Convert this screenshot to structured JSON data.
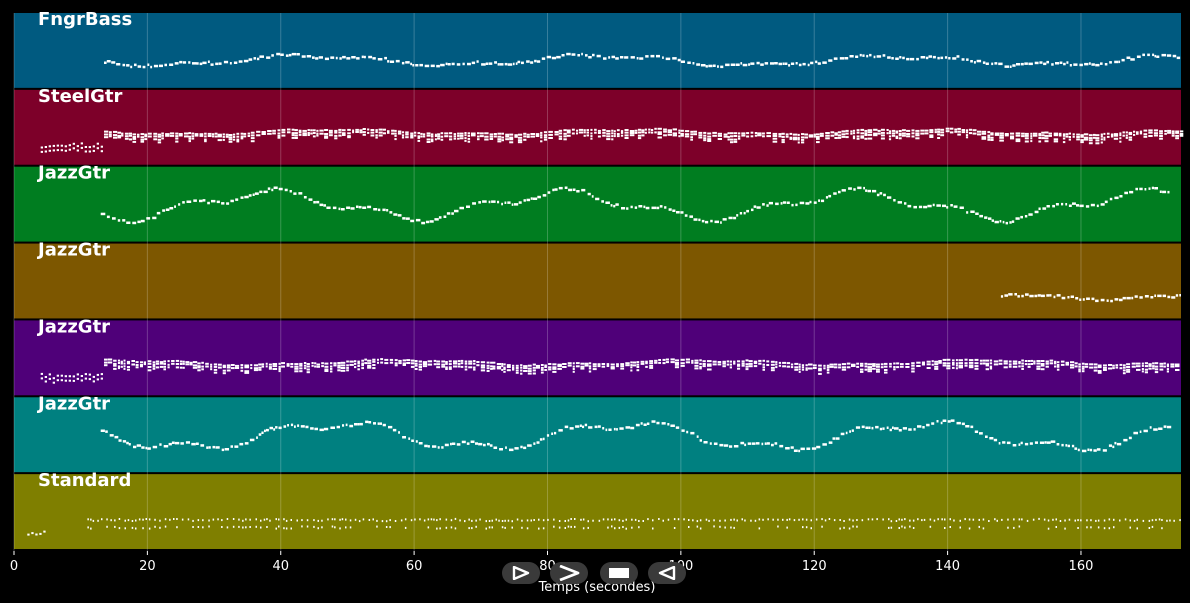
{
  "colors": {
    "background": "#000000",
    "note": "#ffffff",
    "grid": "#ffffff",
    "tick_text": "#ffffff"
  },
  "chart_data": {
    "type": "piano-roll",
    "xlabel": "Temps (secondes)",
    "xlim": [
      0,
      175
    ],
    "xticks": [
      0,
      20,
      40,
      60,
      80,
      100,
      120,
      140,
      160
    ],
    "grid": true,
    "tracks": [
      {
        "name": "FngrBass",
        "color": "#005a80",
        "start": 13.5,
        "end": 175,
        "pattern": "melody",
        "base": 0.62,
        "amp": 0.06,
        "seed": 11
      },
      {
        "name": "SteelGtr",
        "color": "#7d0029",
        "start": 13.5,
        "end": 175,
        "pattern": "chords",
        "base": 0.55,
        "amp": 0.05,
        "seed": 23,
        "intro": [
          4,
          13
        ]
      },
      {
        "name": "JazzGtr",
        "color": "#007d20",
        "start": 13,
        "end": 173,
        "pattern": "melody",
        "base": 0.5,
        "amp": 0.16,
        "seed": 37
      },
      {
        "name": "JazzGtr",
        "color": "#7d5700",
        "start": 148,
        "end": 175,
        "pattern": "melody",
        "base": 0.68,
        "amp": 0.04,
        "seed": 41
      },
      {
        "name": "JazzGtr",
        "color": "#4f0079",
        "start": 13.5,
        "end": 175,
        "pattern": "chords",
        "base": 0.55,
        "amp": 0.05,
        "seed": 53,
        "intro": [
          4,
          13
        ]
      },
      {
        "name": "JazzGtr",
        "color": "#008080",
        "start": 13,
        "end": 173,
        "pattern": "melody",
        "base": 0.5,
        "amp": 0.16,
        "seed": 67
      },
      {
        "name": "Standard",
        "color": "#7f7f00",
        "start": 11,
        "end": 175,
        "pattern": "drums",
        "base": 0.6,
        "amp": 0.02,
        "seed": 79,
        "intro": [
          2,
          4.5
        ]
      }
    ]
  },
  "controls": [
    {
      "name": "play-icon",
      "label": "play"
    },
    {
      "name": "forward-icon",
      "label": "forward"
    },
    {
      "name": "stop-icon",
      "label": "stop"
    },
    {
      "name": "rewind-icon",
      "label": "rewind"
    }
  ]
}
